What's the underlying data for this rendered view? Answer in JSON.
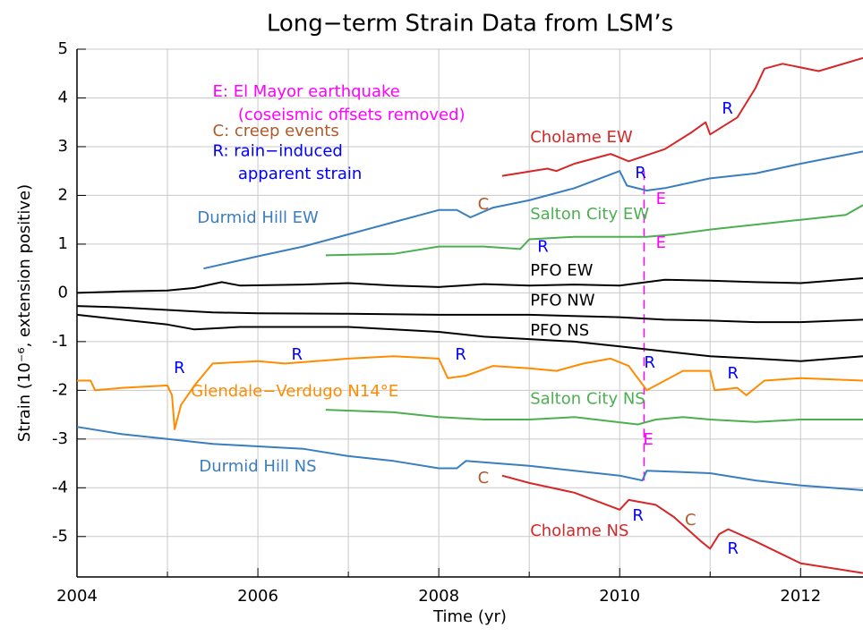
{
  "chart_data": {
    "type": "line",
    "title": "Long−term Strain Data from LSM’s",
    "x_label": "Time (yr)",
    "y_label": "Strain (10⁻⁶, extension positive)",
    "xlim": [
      2004,
      2012.69
    ],
    "ylim": [
      -5.83,
      5
    ],
    "xticks": [
      2004,
      2006,
      2008,
      2010,
      2012
    ],
    "xminor_ticks": [
      2005,
      2007,
      2009,
      2011
    ],
    "yticks": [
      -5,
      -4,
      -3,
      -2,
      -1,
      0,
      1,
      2,
      3,
      4,
      5
    ],
    "grid": true,
    "event_line": {
      "x": 2010.27,
      "y_from": 2.5,
      "y_to": -3.85,
      "color": "#ff00ff"
    },
    "series": [
      {
        "name": "Cholame EW",
        "color": "#d62728",
        "label_x": 2009.01,
        "label_y": 3.18,
        "x": [
          2008.7,
          2009.2,
          2009.3,
          2009.5,
          2009.9,
          2010.1,
          2010.5,
          2010.8,
          2010.95,
          2011.0,
          2011.3,
          2011.5,
          2011.6,
          2011.8,
          2012.2,
          2012.69
        ],
        "values": [
          2.4,
          2.55,
          2.5,
          2.65,
          2.85,
          2.7,
          2.95,
          3.3,
          3.5,
          3.25,
          3.6,
          4.2,
          4.6,
          4.7,
          4.55,
          4.82
        ]
      },
      {
        "name": "Durmid Hill EW",
        "color": "#3a7ebf",
        "label_x": 2005.33,
        "label_y": 1.53,
        "x": [
          2005.4,
          2006,
          2006.5,
          2007,
          2007.5,
          2008,
          2008.2,
          2008.35,
          2008.6,
          2009,
          2009.5,
          2010.0,
          2010.08,
          2010.3,
          2010.5,
          2011,
          2011.5,
          2012,
          2012.69
        ],
        "values": [
          0.5,
          0.75,
          0.95,
          1.2,
          1.45,
          1.7,
          1.7,
          1.55,
          1.75,
          1.9,
          2.15,
          2.5,
          2.2,
          2.1,
          2.15,
          2.35,
          2.45,
          2.65,
          2.9
        ]
      },
      {
        "name": "Salton City EW",
        "color": "#4caf50",
        "label_x": 2009.01,
        "label_y": 1.6,
        "x": [
          2006.75,
          2007.5,
          2008,
          2008.5,
          2008.9,
          2009.0,
          2009.5,
          2010,
          2010.3,
          2010.6,
          2011,
          2011.5,
          2012,
          2012.5,
          2012.69
        ],
        "values": [
          0.77,
          0.8,
          0.95,
          0.95,
          0.9,
          1.1,
          1.15,
          1.15,
          1.15,
          1.2,
          1.3,
          1.4,
          1.5,
          1.6,
          1.8
        ]
      },
      {
        "name": "PFO EW",
        "color": "#000000",
        "label_x": 2009.01,
        "label_y": 0.45,
        "x": [
          2004,
          2004.5,
          2005,
          2005.3,
          2005.6,
          2005.8,
          2006.5,
          2007,
          2007.5,
          2008,
          2008.5,
          2009,
          2009.5,
          2010,
          2010.5,
          2011,
          2011.5,
          2012,
          2012.69
        ],
        "values": [
          0.0,
          0.03,
          0.05,
          0.1,
          0.22,
          0.15,
          0.17,
          0.2,
          0.15,
          0.12,
          0.18,
          0.15,
          0.17,
          0.15,
          0.27,
          0.25,
          0.22,
          0.2,
          0.3
        ]
      },
      {
        "name": "PFO NW",
        "color": "#000000",
        "label_x": 2009.01,
        "label_y": -0.17,
        "x": [
          2004,
          2004.5,
          2005,
          2005.5,
          2006,
          2007,
          2008,
          2009,
          2010,
          2010.5,
          2011,
          2011.5,
          2012,
          2012.69
        ],
        "values": [
          -0.27,
          -0.3,
          -0.35,
          -0.4,
          -0.42,
          -0.43,
          -0.45,
          -0.45,
          -0.5,
          -0.55,
          -0.57,
          -0.6,
          -0.6,
          -0.55
        ]
      },
      {
        "name": "PFO NS",
        "color": "#000000",
        "label_x": 2009.01,
        "label_y": -0.78,
        "x": [
          2004,
          2004.5,
          2005,
          2005.3,
          2005.8,
          2006.5,
          2007,
          2008,
          2008.5,
          2009,
          2009.5,
          2010,
          2010.5,
          2011,
          2011.5,
          2012,
          2012.69
        ],
        "values": [
          -0.45,
          -0.55,
          -0.65,
          -0.75,
          -0.7,
          -0.7,
          -0.7,
          -0.8,
          -0.9,
          -0.95,
          -1.0,
          -1.1,
          -1.2,
          -1.3,
          -1.35,
          -1.4,
          -1.3
        ]
      },
      {
        "name": "Glendale−Verdugo N14°E",
        "color": "#ff8c00",
        "label_x": 2005.26,
        "label_y": -2.03,
        "x": [
          2004,
          2004.15,
          2004.2,
          2004.5,
          2005,
          2005.05,
          2005.08,
          2005.15,
          2005.3,
          2005.5,
          2006,
          2006.3,
          2007,
          2007.5,
          2008,
          2008.1,
          2008.3,
          2008.6,
          2009,
          2009.3,
          2009.6,
          2009.9,
          2010.1,
          2010.3,
          2010.7,
          2011.0,
          2011.05,
          2011.3,
          2011.4,
          2011.6,
          2012,
          2012.69
        ],
        "values": [
          -1.8,
          -1.8,
          -2.0,
          -1.95,
          -1.9,
          -2.1,
          -2.8,
          -2.3,
          -1.9,
          -1.45,
          -1.4,
          -1.45,
          -1.35,
          -1.3,
          -1.35,
          -1.75,
          -1.7,
          -1.5,
          -1.55,
          -1.6,
          -1.45,
          -1.35,
          -1.5,
          -2.0,
          -1.6,
          -1.6,
          -2.0,
          -1.95,
          -2.1,
          -1.8,
          -1.75,
          -1.8
        ]
      },
      {
        "name": "Salton City NS",
        "color": "#4caf50",
        "label_x": 2009.01,
        "label_y": -2.19,
        "x": [
          2006.75,
          2007.5,
          2008,
          2008.5,
          2009,
          2009.5,
          2010.2,
          2010.4,
          2010.7,
          2011,
          2011.5,
          2012,
          2012.69
        ],
        "values": [
          -2.4,
          -2.45,
          -2.55,
          -2.6,
          -2.6,
          -2.55,
          -2.7,
          -2.6,
          -2.55,
          -2.6,
          -2.65,
          -2.6,
          -2.6
        ]
      },
      {
        "name": "Durmid Hill NS",
        "color": "#3a7ebf",
        "label_x": 2005.35,
        "label_y": -3.57,
        "x": [
          2004,
          2004.5,
          2005,
          2005.5,
          2006,
          2006.5,
          2007,
          2007.5,
          2008,
          2008.2,
          2008.3,
          2009,
          2009.5,
          2010,
          2010.25,
          2010.3,
          2011,
          2011.5,
          2012,
          2012.69
        ],
        "values": [
          -2.75,
          -2.9,
          -3.0,
          -3.1,
          -3.15,
          -3.2,
          -3.35,
          -3.45,
          -3.6,
          -3.6,
          -3.45,
          -3.55,
          -3.65,
          -3.75,
          -3.85,
          -3.65,
          -3.7,
          -3.85,
          -3.95,
          -4.05
        ]
      },
      {
        "name": "Cholame NS",
        "color": "#d62728",
        "label_x": 2009.01,
        "label_y": -4.89,
        "x": [
          2008.7,
          2009,
          2009.5,
          2010,
          2010.1,
          2010.4,
          2010.6,
          2010.9,
          2011.0,
          2011.1,
          2011.2,
          2011.5,
          2012,
          2012.69
        ],
        "values": [
          -3.75,
          -3.9,
          -4.1,
          -4.45,
          -4.25,
          -4.35,
          -4.6,
          -5.1,
          -5.25,
          -4.95,
          -4.85,
          -5.1,
          -5.55,
          -5.75
        ]
      }
    ],
    "annotations": [
      {
        "text": "E: El Mayor earthquake",
        "x": 2005.5,
        "y": 4.12,
        "color": "#ff00ff"
      },
      {
        "text": "(coseismic offsets removed)",
        "x": 2005.78,
        "y": 3.64,
        "color": "#ff00ff"
      },
      {
        "text": "C: creep events",
        "x": 2005.5,
        "y": 3.31,
        "color": "#b05a2a"
      },
      {
        "text": "R: rain−induced",
        "x": 2005.5,
        "y": 2.9,
        "color": "#0000ff"
      },
      {
        "text": "apparent strain",
        "x": 2005.78,
        "y": 2.43,
        "color": "#0000ff"
      },
      {
        "text": "R",
        "x": 2005.07,
        "y": -1.55,
        "color": "#0000ff"
      },
      {
        "text": "R",
        "x": 2006.37,
        "y": -1.28,
        "color": "#0000ff"
      },
      {
        "text": "R",
        "x": 2008.18,
        "y": -1.28,
        "color": "#0000ff"
      },
      {
        "text": "R",
        "x": 2009.09,
        "y": 0.93,
        "color": "#0000ff"
      },
      {
        "text": "R",
        "x": 2010.17,
        "y": 2.45,
        "color": "#0000ff"
      },
      {
        "text": "R",
        "x": 2010.27,
        "y": -1.44,
        "color": "#0000ff"
      },
      {
        "text": "R",
        "x": 2011.19,
        "y": -1.66,
        "color": "#0000ff"
      },
      {
        "text": "R",
        "x": 2011.13,
        "y": 3.77,
        "color": "#0000ff"
      },
      {
        "text": "R",
        "x": 2010.14,
        "y": -4.58,
        "color": "#0000ff"
      },
      {
        "text": "R",
        "x": 2011.19,
        "y": -5.26,
        "color": "#0000ff"
      },
      {
        "text": "C",
        "x": 2008.43,
        "y": 1.81,
        "color": "#b05a2a"
      },
      {
        "text": "C",
        "x": 2008.43,
        "y": -3.81,
        "color": "#b05a2a"
      },
      {
        "text": "C",
        "x": 2010.72,
        "y": -4.67,
        "color": "#b05a2a"
      },
      {
        "text": "E",
        "x": 2010.4,
        "y": 1.92,
        "color": "#ff00ff"
      },
      {
        "text": "E",
        "x": 2010.4,
        "y": 1.02,
        "color": "#ff00ff"
      },
      {
        "text": "E",
        "x": 2010.26,
        "y": -3.02,
        "color": "#ff00ff"
      }
    ]
  }
}
